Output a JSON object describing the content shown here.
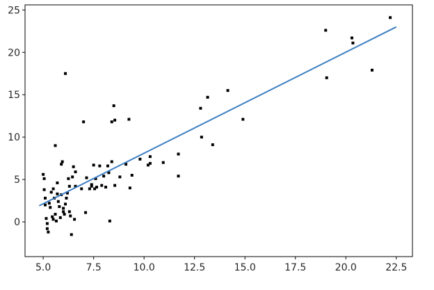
{
  "chart_data": {
    "type": "scatter",
    "title": "",
    "xlabel": "",
    "ylabel": "",
    "xlim": [
      4.1,
      23.3
    ],
    "ylim": [
      -4.1,
      25.6
    ],
    "xticks": [
      5.0,
      7.5,
      10.0,
      12.5,
      15.0,
      17.5,
      20.0,
      22.5
    ],
    "xtick_labels": [
      "5.0",
      "7.5",
      "10.0",
      "12.5",
      "15.0",
      "17.5",
      "20.0",
      "22.5"
    ],
    "yticks": [
      0,
      5,
      10,
      15,
      20,
      25
    ],
    "ytick_labels": [
      "0",
      "5",
      "10",
      "15",
      "20",
      "25"
    ],
    "grid": false,
    "series": [
      {
        "kind": "scatter",
        "color": "#000000",
        "points": [
          [
            5.0,
            5.6
          ],
          [
            5.05,
            5.1
          ],
          [
            5.05,
            3.8
          ],
          [
            5.1,
            2.8
          ],
          [
            5.1,
            2.0
          ],
          [
            5.15,
            0.4
          ],
          [
            5.2,
            -0.2
          ],
          [
            5.2,
            -0.8
          ],
          [
            5.25,
            -1.2
          ],
          [
            5.3,
            2.2
          ],
          [
            5.35,
            1.7
          ],
          [
            5.4,
            3.5
          ],
          [
            5.45,
            0.6
          ],
          [
            5.5,
            0.3
          ],
          [
            5.5,
            3.9
          ],
          [
            5.55,
            2.8
          ],
          [
            5.6,
            9.0
          ],
          [
            5.6,
            0.9
          ],
          [
            5.65,
            0.1
          ],
          [
            5.7,
            3.3
          ],
          [
            5.7,
            4.6
          ],
          [
            5.75,
            2.4
          ],
          [
            5.8,
            1.8
          ],
          [
            5.85,
            0.5
          ],
          [
            5.9,
            3.2
          ],
          [
            5.9,
            6.8
          ],
          [
            5.95,
            7.1
          ],
          [
            6.0,
            1.6
          ],
          [
            6.0,
            1.2
          ],
          [
            6.05,
            0.9
          ],
          [
            6.1,
            17.5
          ],
          [
            6.1,
            2.1
          ],
          [
            6.15,
            2.8
          ],
          [
            6.2,
            3.4
          ],
          [
            6.25,
            5.1
          ],
          [
            6.3,
            4.2
          ],
          [
            6.3,
            1.2
          ],
          [
            6.35,
            0.7
          ],
          [
            6.4,
            -1.5
          ],
          [
            6.45,
            5.3
          ],
          [
            6.5,
            6.5
          ],
          [
            6.55,
            0.3
          ],
          [
            6.6,
            5.9
          ],
          [
            6.6,
            4.2
          ],
          [
            6.9,
            3.9
          ],
          [
            7.0,
            11.8
          ],
          [
            7.1,
            1.1
          ],
          [
            7.15,
            5.2
          ],
          [
            7.3,
            3.9
          ],
          [
            7.4,
            4.2
          ],
          [
            7.4,
            4.4
          ],
          [
            7.5,
            6.7
          ],
          [
            7.55,
            3.9
          ],
          [
            7.6,
            5.1
          ],
          [
            7.65,
            4.1
          ],
          [
            7.8,
            6.6
          ],
          [
            7.9,
            4.3
          ],
          [
            8.0,
            5.4
          ],
          [
            8.1,
            4.1
          ],
          [
            8.2,
            6.6
          ],
          [
            8.25,
            5.8
          ],
          [
            8.3,
            0.1
          ],
          [
            8.4,
            11.8
          ],
          [
            8.4,
            7.1
          ],
          [
            8.5,
            13.7
          ],
          [
            8.55,
            12.0
          ],
          [
            8.55,
            4.3
          ],
          [
            8.8,
            5.3
          ],
          [
            9.1,
            6.8
          ],
          [
            9.25,
            12.1
          ],
          [
            9.3,
            4.0
          ],
          [
            9.4,
            5.5
          ],
          [
            9.8,
            7.4
          ],
          [
            10.2,
            6.7
          ],
          [
            10.3,
            7.7
          ],
          [
            10.3,
            6.9
          ],
          [
            10.95,
            7.0
          ],
          [
            11.7,
            8.0
          ],
          [
            11.7,
            5.4
          ],
          [
            12.8,
            13.4
          ],
          [
            12.85,
            10.0
          ],
          [
            13.15,
            14.7
          ],
          [
            13.4,
            9.1
          ],
          [
            14.15,
            15.5
          ],
          [
            14.9,
            12.1
          ],
          [
            19.0,
            22.6
          ],
          [
            19.05,
            17.0
          ],
          [
            20.3,
            21.7
          ],
          [
            20.35,
            21.1
          ],
          [
            21.3,
            17.9
          ],
          [
            22.2,
            24.1
          ]
        ]
      },
      {
        "kind": "line",
        "color": "#3e7fc1",
        "x": [
          4.8,
          22.5
        ],
        "y": [
          1.9,
          23.0
        ]
      }
    ]
  }
}
